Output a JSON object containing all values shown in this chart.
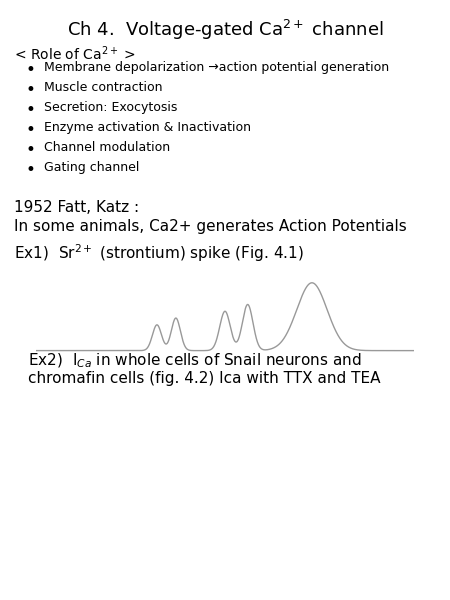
{
  "bg_color": "#ffffff",
  "text_color": "#000000",
  "spike_color": "#999999",
  "bullet_items": [
    "Membrane depolarization →action potential generation",
    "Muscle contraction",
    "Secretion: Exocytosis",
    "Enzyme activation & Inactivation",
    "Channel modulation",
    "Gating channel"
  ],
  "text_1952": "1952 Fatt, Katz :",
  "text_animals": "In some animals, Ca2+ generates Action Potentials",
  "font_size_title": 13,
  "font_size_body": 10,
  "font_size_small": 9
}
